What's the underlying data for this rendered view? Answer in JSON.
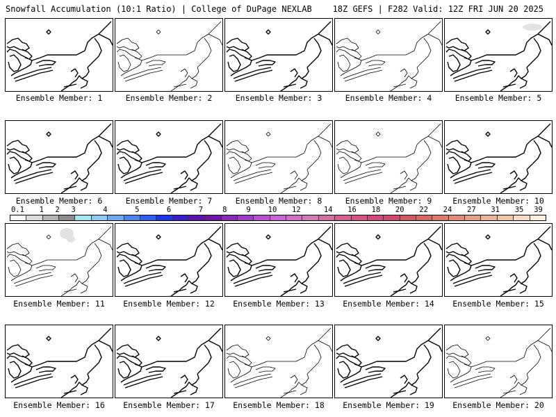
{
  "header": {
    "title_left": "Snowfall Accumulation (10:1 Ratio) | College of DuPage NEXLAB",
    "title_right": "18Z GEFS | F282 Valid: 12Z FRI JUN 20 2025"
  },
  "legend": {
    "labels": [
      "0.1",
      "1",
      "2",
      "3",
      "4",
      "5",
      "6",
      "7",
      "8",
      "9",
      "10",
      "12",
      "14",
      "16",
      "18",
      "20",
      "22",
      "24",
      "27",
      "31",
      "35",
      "39"
    ],
    "colors": [
      "#ffffff",
      "#dcdcdc",
      "#b4b4b4",
      "#8c8c8c",
      "#a0e8f0",
      "#8cc8f4",
      "#6aa8f2",
      "#4a86ee",
      "#2c5ef0",
      "#1e34e8",
      "#3a1cc8",
      "#5a12b0",
      "#7014a8",
      "#8a28b8",
      "#a03cc8",
      "#b850d0",
      "#c864d4",
      "#d070c8",
      "#d47ab4",
      "#d470a0",
      "#d46090",
      "#d45486",
      "#d24a7e",
      "#d04a70",
      "#d05a60",
      "#d66a62",
      "#dc7a6a",
      "#e08c78",
      "#e6a084",
      "#ecb496",
      "#f0c8a8",
      "#f6dcc4",
      "#faeede"
    ]
  },
  "members": [
    {
      "label": "Ensemble Member: 1"
    },
    {
      "label": "Ensemble Member: 2"
    },
    {
      "label": "Ensemble Member: 3"
    },
    {
      "label": "Ensemble Member: 4"
    },
    {
      "label": "Ensemble Member: 5"
    },
    {
      "label": "Ensemble Member: 6"
    },
    {
      "label": "Ensemble Member: 7"
    },
    {
      "label": "Ensemble Member: 8"
    },
    {
      "label": "Ensemble Member: 9"
    },
    {
      "label": "Ensemble Member: 10"
    },
    {
      "label": "Ensemble Member: 11"
    },
    {
      "label": "Ensemble Member: 12"
    },
    {
      "label": "Ensemble Member: 13"
    },
    {
      "label": "Ensemble Member: 14"
    },
    {
      "label": "Ensemble Member: 15"
    },
    {
      "label": "Ensemble Member: 16"
    },
    {
      "label": "Ensemble Member: 17"
    },
    {
      "label": "Ensemble Member: 18"
    },
    {
      "label": "Ensemble Member: 19"
    },
    {
      "label": "Ensemble Member: 20"
    }
  ]
}
